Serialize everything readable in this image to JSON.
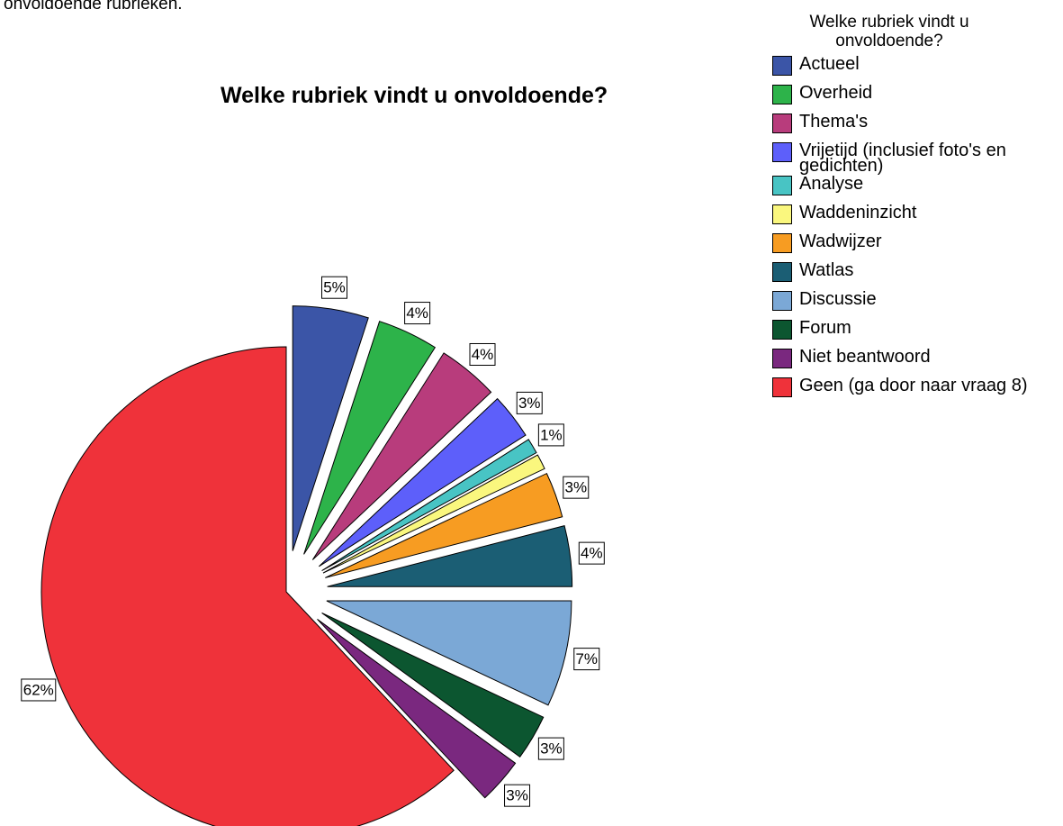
{
  "caption": "onvoldoende rubrieken.",
  "chart_data": {
    "type": "pie",
    "title": "Welke rubriek vindt u onvoldoende?",
    "legend_title": "Welke rubriek vindt u onvoldoende?",
    "legend_position": "top-right",
    "slices": [
      {
        "label": "Actueel",
        "value": 5,
        "display": "5%",
        "color": "#3b55a7"
      },
      {
        "label": "Overheid",
        "value": 4,
        "display": "4%",
        "color": "#2db34a"
      },
      {
        "label": "Thema's",
        "value": 4,
        "display": "4%",
        "color": "#b83c7c"
      },
      {
        "label": "Vrijetijd (inclusief foto's en gedichten)",
        "value": 3,
        "display": "3%",
        "color": "#5d5ffa"
      },
      {
        "label": "Analyse",
        "value": 1,
        "display": "1%",
        "color": "#48c4c4"
      },
      {
        "label": "Waddeninzicht",
        "value": 1,
        "display": "",
        "color": "#faf77e"
      },
      {
        "label": "Wadwijzer",
        "value": 3,
        "display": "3%",
        "color": "#f79c22"
      },
      {
        "label": "Watlas",
        "value": 4,
        "display": "4%",
        "color": "#1b5e74"
      },
      {
        "label": "Discussie",
        "value": 7,
        "display": "7%",
        "color": "#7ba8d6"
      },
      {
        "label": "Forum",
        "value": 3,
        "display": "3%",
        "color": "#0c5630"
      },
      {
        "label": "Niet beantwoord",
        "value": 3,
        "display": "3%",
        "color": "#7a287f"
      },
      {
        "label": "Geen (ga door naar vraag 8)",
        "value": 62,
        "display": "62%",
        "color": "#ef323a"
      }
    ]
  }
}
